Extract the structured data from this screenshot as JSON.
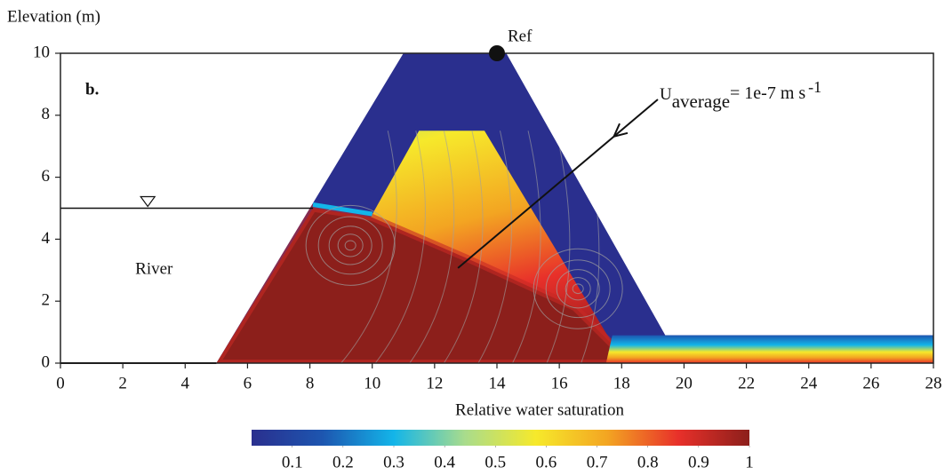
{
  "chart_data": {
    "type": "field",
    "y_axis_label": "Elevation (m)",
    "panel_label": "b.",
    "xlim": [
      0,
      28
    ],
    "ylim": [
      0,
      10
    ],
    "xticks": [
      0,
      2,
      4,
      6,
      8,
      10,
      12,
      14,
      16,
      18,
      20,
      22,
      24,
      26,
      28
    ],
    "yticks": [
      0,
      2,
      4,
      6,
      8,
      10
    ],
    "dam": {
      "x": [
        5,
        11,
        14.3,
        19.4,
        28,
        28
      ],
      "y": [
        0,
        10,
        10,
        0.9,
        0.9,
        0
      ]
    },
    "core": {
      "x": [
        10,
        11.5,
        13.6,
        17.9,
        17.9,
        8.1
      ],
      "y": [
        4.8,
        7.5,
        7.5,
        0.3,
        0,
        0
      ]
    },
    "saturated_zone": {
      "x": [
        5,
        8.1,
        10,
        13,
        16.5,
        17.8,
        18
      ],
      "y": [
        0,
        5,
        4.7,
        3.4,
        1.8,
        0.5,
        0
      ]
    },
    "drain": {
      "x": [
        17.7,
        28,
        28,
        17.5
      ],
      "y": [
        0.9,
        0.9,
        0,
        0
      ]
    },
    "river_level": 5,
    "river_label": "River",
    "ref": {
      "x": 14,
      "y": 10,
      "label": "Ref"
    },
    "velocity_arrow": {
      "x": [
        12.75,
        19.16
      ],
      "y": [
        3.07,
        8.51
      ]
    },
    "velocity_label": {
      "symbol": "U",
      "subscript": "average",
      "text": "= 1e-7 m s",
      "superscript": "-1"
    },
    "colorbar": {
      "label": "Relative water saturation",
      "clim": [
        0.02,
        1
      ],
      "ticks": [
        0.1,
        0.2,
        0.3,
        0.4,
        0.5,
        0.6,
        0.7,
        0.8,
        0.9,
        1
      ],
      "colormap": [
        "#2a2f8e",
        "#1d56b0",
        "#13b5e9",
        "#a9dc8c",
        "#f6e92b",
        "#f3a522",
        "#e8302a",
        "#8c1f1b"
      ]
    }
  }
}
